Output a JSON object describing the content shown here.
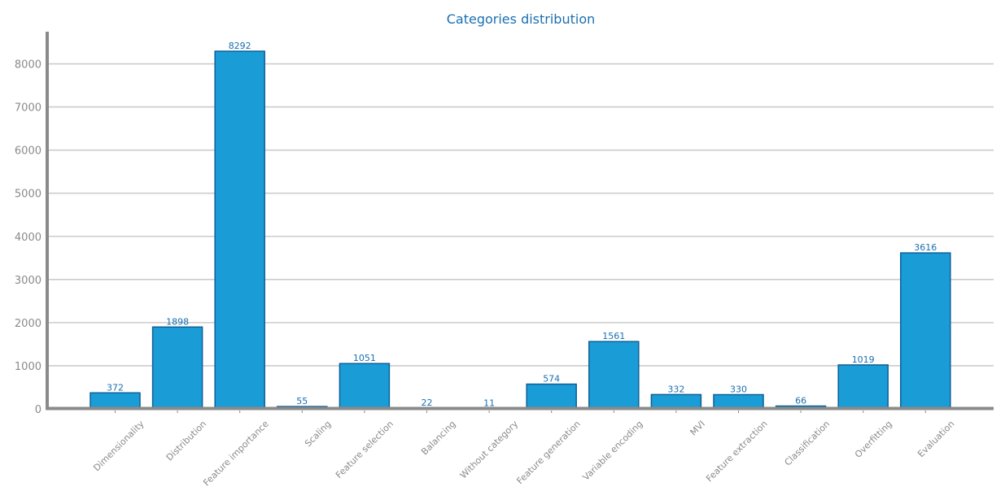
{
  "chart_data": {
    "type": "bar",
    "title": "Categories distribution",
    "xlabel": "",
    "ylabel": "",
    "categories": [
      "Dimensionality",
      "Distribution",
      "Feature importance",
      "Scaling",
      "Feature selection",
      "Balancing",
      "Without category",
      "Feature generation",
      "Variable encoding",
      "MVI",
      "Feature extraction",
      "Classification",
      "Overfitting",
      "Evaluation"
    ],
    "values": [
      372,
      1898,
      8292,
      55,
      1051,
      22,
      11,
      574,
      1561,
      332,
      330,
      66,
      1019,
      3616
    ],
    "ylim": [
      0,
      8700
    ],
    "yticks": [
      0,
      1000,
      2000,
      3000,
      4000,
      5000,
      6000,
      7000,
      8000
    ],
    "grid": "horizontal",
    "legend": "none",
    "colors": {
      "bar": "#1a9cd6",
      "bar_edge": "#0e5f98",
      "text_accent": "#1a6fb0",
      "axis": "#8a8a8a"
    }
  }
}
